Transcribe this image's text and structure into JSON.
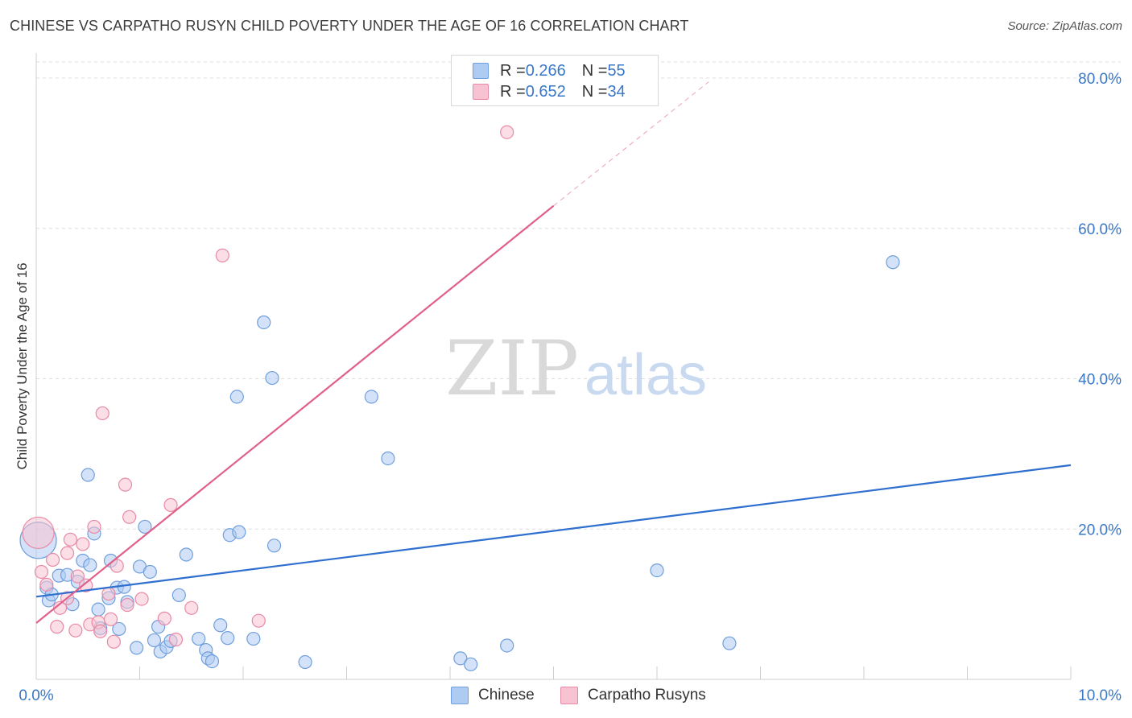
{
  "title": "CHINESE VS CARPATHO RUSYN CHILD POVERTY UNDER THE AGE OF 16 CORRELATION CHART",
  "source": "Source: ZipAtlas.com",
  "watermark": {
    "zip": "ZIP",
    "atlas": "atlas"
  },
  "legend": {
    "rows": [
      {
        "r_label": "R = ",
        "r_value": "0.266",
        "n_label": "N = ",
        "n_value": "55"
      },
      {
        "r_label": "R = ",
        "r_value": "0.652",
        "n_label": "N = ",
        "n_value": "34"
      }
    ]
  },
  "colors": {
    "chinese_fill": "#aecbf2",
    "chinese_stroke": "#6f9fdc",
    "chinese_line": "#2e6fcf",
    "rusyn_fill": "#f7c3d2",
    "rusyn_stroke": "#e88aa6",
    "rusyn_line": "#e0608a",
    "tick_label": "#3a78c8",
    "grid": "#dcdcdc"
  },
  "chart_data": {
    "type": "scatter",
    "title": "CHINESE VS CARPATHO RUSYN CHILD POVERTY UNDER THE AGE OF 16 CORRELATION CHART",
    "xlabel": "",
    "ylabel": "Child Poverty Under the Age of 16",
    "xlim": [
      0,
      10
    ],
    "ylim": [
      0,
      80
    ],
    "x_tick_labels": [
      "0.0%",
      "10.0%"
    ],
    "y_ticks": [
      20,
      40,
      60,
      80
    ],
    "y_tick_labels": [
      "20.0%",
      "40.0%",
      "60.0%",
      "80.0%"
    ],
    "grid": true,
    "legend_position": "top-center",
    "series": [
      {
        "name": "Chinese",
        "r": 0.266,
        "n": 55,
        "trend": {
          "x0": 0,
          "y0": 11.0,
          "x1": 10,
          "y1": 28.5
        },
        "points": [
          [
            0.02,
            18.5,
            30
          ],
          [
            0.1,
            12.2,
            10
          ],
          [
            0.12,
            10.5,
            10
          ],
          [
            0.15,
            11.3,
            10
          ],
          [
            0.22,
            13.8,
            10
          ],
          [
            0.3,
            13.9,
            10
          ],
          [
            0.35,
            10.0,
            10
          ],
          [
            0.4,
            13.0,
            10
          ],
          [
            0.45,
            15.8,
            10
          ],
          [
            0.5,
            27.2,
            10
          ],
          [
            0.52,
            15.2,
            10
          ],
          [
            0.56,
            19.4,
            10
          ],
          [
            0.6,
            9.3,
            10
          ],
          [
            0.62,
            6.8,
            10
          ],
          [
            0.7,
            10.8,
            10
          ],
          [
            0.72,
            15.8,
            10
          ],
          [
            0.78,
            12.2,
            10
          ],
          [
            0.8,
            6.7,
            10
          ],
          [
            0.85,
            12.3,
            10
          ],
          [
            0.88,
            10.3,
            10
          ],
          [
            0.97,
            4.2,
            10
          ],
          [
            1.0,
            15.0,
            10
          ],
          [
            1.05,
            20.3,
            10
          ],
          [
            1.1,
            14.3,
            10
          ],
          [
            1.14,
            5.2,
            10
          ],
          [
            1.18,
            7.0,
            10
          ],
          [
            1.2,
            3.7,
            10
          ],
          [
            1.26,
            4.3,
            10
          ],
          [
            1.3,
            5.1,
            10
          ],
          [
            1.38,
            11.2,
            10
          ],
          [
            1.45,
            16.6,
            10
          ],
          [
            1.57,
            5.4,
            10
          ],
          [
            1.64,
            3.9,
            10
          ],
          [
            1.66,
            2.8,
            10
          ],
          [
            1.7,
            2.4,
            10
          ],
          [
            1.78,
            7.2,
            10
          ],
          [
            1.85,
            5.5,
            10
          ],
          [
            1.87,
            19.2,
            10
          ],
          [
            1.96,
            19.6,
            10
          ],
          [
            1.94,
            37.6,
            10
          ],
          [
            2.1,
            5.4,
            10
          ],
          [
            2.2,
            47.5,
            10
          ],
          [
            2.28,
            40.1,
            10
          ],
          [
            2.3,
            17.8,
            10
          ],
          [
            2.6,
            2.3,
            10
          ],
          [
            3.24,
            37.6,
            10
          ],
          [
            3.4,
            29.4,
            10
          ],
          [
            4.1,
            2.8,
            10
          ],
          [
            4.2,
            2.0,
            10
          ],
          [
            4.55,
            4.5,
            10
          ],
          [
            6.0,
            14.5,
            10
          ],
          [
            6.7,
            4.8,
            10
          ],
          [
            8.28,
            55.5,
            10
          ]
        ]
      },
      {
        "name": "Carpatho Rusyns",
        "r": 0.652,
        "n": 34,
        "trend": {
          "x0": 0,
          "y0": 7.5,
          "x1": 5.0,
          "y1": 63.0,
          "dash_x1": 6.5,
          "dash_y1": 79.5
        },
        "points": [
          [
            0.02,
            19.5,
            26
          ],
          [
            0.05,
            14.3,
            10
          ],
          [
            0.1,
            12.6,
            10
          ],
          [
            0.16,
            15.9,
            10
          ],
          [
            0.2,
            7.0,
            10
          ],
          [
            0.23,
            9.5,
            10
          ],
          [
            0.3,
            10.8,
            10
          ],
          [
            0.3,
            16.8,
            10
          ],
          [
            0.33,
            18.6,
            10
          ],
          [
            0.38,
            6.5,
            10
          ],
          [
            0.4,
            13.7,
            10
          ],
          [
            0.45,
            18.0,
            10
          ],
          [
            0.48,
            12.5,
            10
          ],
          [
            0.52,
            7.3,
            10
          ],
          [
            0.56,
            20.3,
            10
          ],
          [
            0.6,
            7.6,
            10
          ],
          [
            0.62,
            6.4,
            10
          ],
          [
            0.64,
            35.4,
            10
          ],
          [
            0.7,
            11.4,
            10
          ],
          [
            0.72,
            8.0,
            10
          ],
          [
            0.75,
            5.0,
            10
          ],
          [
            0.78,
            15.1,
            10
          ],
          [
            0.86,
            25.9,
            10
          ],
          [
            0.88,
            9.9,
            10
          ],
          [
            0.9,
            21.6,
            10
          ],
          [
            1.02,
            10.7,
            10
          ],
          [
            1.24,
            8.1,
            10
          ],
          [
            1.3,
            23.2,
            10
          ],
          [
            1.35,
            5.3,
            10
          ],
          [
            1.5,
            9.5,
            10
          ],
          [
            1.8,
            56.4,
            10
          ],
          [
            2.15,
            7.8,
            10
          ],
          [
            4.55,
            72.8,
            10
          ]
        ]
      }
    ]
  }
}
